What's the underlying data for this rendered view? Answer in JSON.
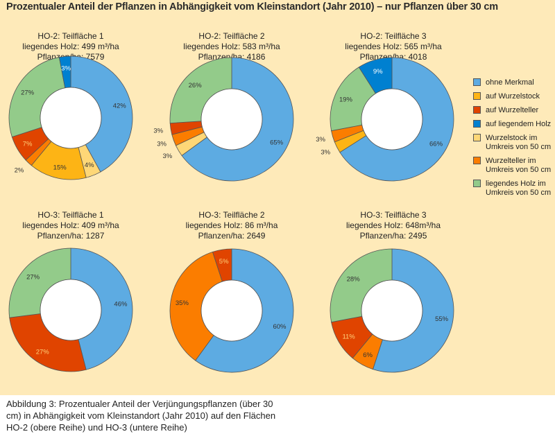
{
  "title": "Prozentualer Anteil der Pflanzen in Abhängigkeit vom Kleinstandort (Jahr 2010) – nur Pflanzen über 30 cm",
  "caption": [
    "Abbildung 3: Prozentualer Anteil der Verjüngungspflanzen (über 30",
    "cm) in Abhängigkeit vom Kleinstandort (Jahr 2010) auf den Flächen",
    "HO-2 (obere Reihe) und HO-3 (untere Reihe)"
  ],
  "legend": [
    {
      "key": "ohne",
      "label1": "ohne Merkmal",
      "label2": "",
      "color": "#5dabe2"
    },
    {
      "key": "wstock",
      "label1": "auf Wurzelstock",
      "label2": "",
      "color": "#fdb415"
    },
    {
      "key": "wteller",
      "label1": "auf Wurzelteller",
      "label2": "",
      "color": "#e04400"
    },
    {
      "key": "holz",
      "label1": "auf liegendem Holz",
      "label2": "",
      "color": "#0080d0"
    },
    {
      "key": "wstock50",
      "label1": "Wurzelstock im",
      "label2": "Umkreis von 50 cm",
      "color": "#fed777"
    },
    {
      "key": "wteller50",
      "label1": "Wurzelteller im",
      "label2": "Umkreis von 50 cm",
      "color": "#fb7d00"
    },
    {
      "key": "holz50",
      "label1": "liegendes Holz im",
      "label2": "Umkreis von 50 cm",
      "color": "#93cb8a"
    }
  ],
  "chart_data": [
    {
      "type": "pie",
      "variant": "donut",
      "title": "HO-2: Teilfläche 1",
      "line2": "liegendes Holz: 499 m³/ha",
      "line3": "Pflanzen/ha: 7579",
      "slices": [
        {
          "key": "ohne",
          "value": 42,
          "label": "42%"
        },
        {
          "key": "wstock50",
          "value": 4,
          "label": "4%"
        },
        {
          "key": "wstock",
          "value": 15,
          "label": "15%"
        },
        {
          "key": "wteller50",
          "value": 2,
          "label": "2%"
        },
        {
          "key": "wteller",
          "value": 7,
          "label": "7%"
        },
        {
          "key": "holz50",
          "value": 27,
          "label": "27%"
        },
        {
          "key": "holz",
          "value": 3,
          "label": "3%"
        }
      ]
    },
    {
      "type": "pie",
      "variant": "donut",
      "title": "HO-2: Teilfläche 2",
      "line2": "liegendes Holz: 583 m³/ha",
      "line3": "Pflanzen/ha: 4186",
      "slices": [
        {
          "key": "ohne",
          "value": 65,
          "label": "65%"
        },
        {
          "key": "wstock50",
          "value": 3,
          "label": "3%"
        },
        {
          "key": "wteller50",
          "value": 3,
          "label": "3%"
        },
        {
          "key": "wteller",
          "value": 3,
          "label": "3%"
        },
        {
          "key": "holz50",
          "value": 26,
          "label": "26%"
        }
      ]
    },
    {
      "type": "pie",
      "variant": "donut",
      "title": "HO-2: Teilfläche 3",
      "line2": "liegendes Holz: 565 m³/ha",
      "line3": "Pflanzen/ha: 4018",
      "slices": [
        {
          "key": "ohne",
          "value": 66,
          "label": "66%"
        },
        {
          "key": "wstock",
          "value": 3,
          "label": "3%"
        },
        {
          "key": "wteller50",
          "value": 3,
          "label": "3%"
        },
        {
          "key": "holz50",
          "value": 19,
          "label": "19%"
        },
        {
          "key": "holz",
          "value": 9,
          "label": "9%"
        }
      ]
    },
    {
      "type": "pie",
      "variant": "donut",
      "title": "HO-3: Teilfläche 1",
      "line2": "liegendes Holz: 409 m³/ha",
      "line3": "Pflanzen/ha: 1287",
      "slices": [
        {
          "key": "ohne",
          "value": 46,
          "label": "46%"
        },
        {
          "key": "wteller",
          "value": 27,
          "label": "27%"
        },
        {
          "key": "holz50",
          "value": 27,
          "label": "27%"
        }
      ]
    },
    {
      "type": "pie",
      "variant": "donut",
      "title": "HO-3: Teilfläche 2",
      "line2": "liegendes Holz: 86 m³/ha",
      "line3": "Pflanzen/ha: 2649",
      "slices": [
        {
          "key": "ohne",
          "value": 60,
          "label": "60%"
        },
        {
          "key": "wteller50",
          "value": 35,
          "label": "35%"
        },
        {
          "key": "wteller",
          "value": 5,
          "label": "5%"
        }
      ]
    },
    {
      "type": "pie",
      "variant": "donut",
      "title": "HO-3: Teilfläche 3",
      "line2": "liegendes Holz: 648m³/ha",
      "line3": "Pflanzen/ha: 2495",
      "slices": [
        {
          "key": "ohne",
          "value": 55,
          "label": "55%"
        },
        {
          "key": "wteller50",
          "value": 6,
          "label": "6%"
        },
        {
          "key": "wteller",
          "value": 11,
          "label": "11%"
        },
        {
          "key": "holz50",
          "value": 28,
          "label": "28%"
        }
      ]
    }
  ]
}
